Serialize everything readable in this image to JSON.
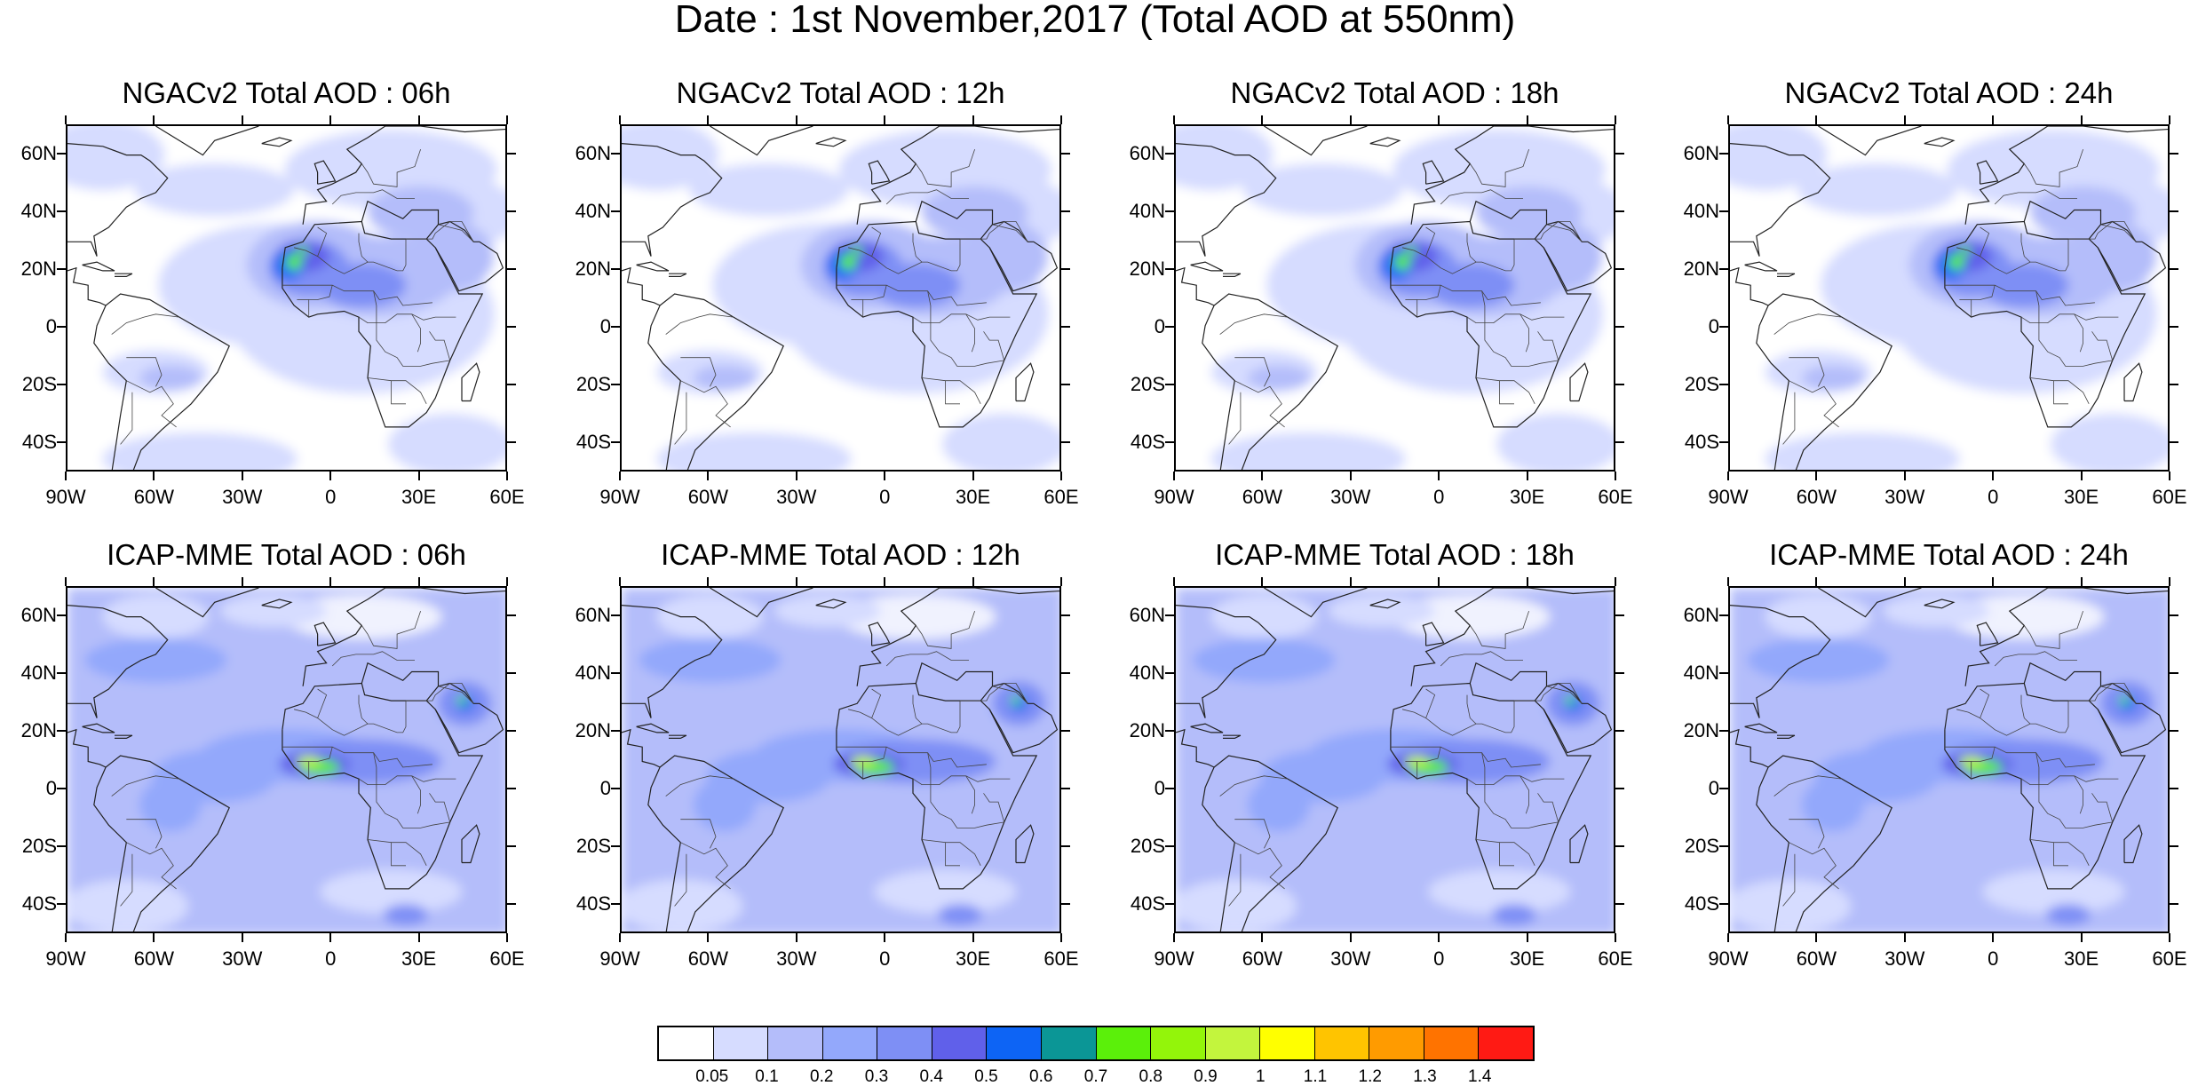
{
  "title": "Date : 1st November,2017 (Total AOD at 550nm)",
  "panels": [
    {
      "title": "NGACv2 Total AOD : 06h",
      "model": "NGACv2",
      "hour": "06h"
    },
    {
      "title": "NGACv2 Total AOD : 12h",
      "model": "NGACv2",
      "hour": "12h"
    },
    {
      "title": "NGACv2 Total AOD : 18h",
      "model": "NGACv2",
      "hour": "18h"
    },
    {
      "title": "NGACv2 Total AOD : 24h",
      "model": "NGACv2",
      "hour": "24h"
    },
    {
      "title": "ICAP-MME Total AOD : 06h",
      "model": "ICAP-MME",
      "hour": "06h"
    },
    {
      "title": "ICAP-MME Total AOD : 12h",
      "model": "ICAP-MME",
      "hour": "12h"
    },
    {
      "title": "ICAP-MME Total AOD : 18h",
      "model": "ICAP-MME",
      "hour": "18h"
    },
    {
      "title": "ICAP-MME Total AOD : 24h",
      "model": "ICAP-MME",
      "hour": "24h"
    }
  ],
  "axes": {
    "lat_labels": [
      "60N",
      "40N",
      "20N",
      "0",
      "20S",
      "40S"
    ],
    "lat_values": [
      60,
      40,
      20,
      0,
      -20,
      -40
    ],
    "lat_range": [
      -50,
      70
    ],
    "lon_labels": [
      "90W",
      "60W",
      "30W",
      "0",
      "30E",
      "60E"
    ],
    "lon_values": [
      -90,
      -60,
      -30,
      0,
      30,
      60
    ],
    "lon_range": [
      -90,
      60
    ]
  },
  "colorbar": {
    "levels": [
      "0.05",
      "0.1",
      "0.2",
      "0.3",
      "0.4",
      "0.5",
      "0.6",
      "0.7",
      "0.8",
      "0.9",
      "1",
      "1.1",
      "1.2",
      "1.3",
      "1.4"
    ],
    "colors": [
      "#ffffff",
      "#d6dcff",
      "#b4bdfa",
      "#93a8fb",
      "#7e8ff5",
      "#6060ea",
      "#0d64f5",
      "#0b9696",
      "#5bf00a",
      "#93f50a",
      "#c3f53d",
      "#ffff00",
      "#ffc400",
      "#ff9b00",
      "#ff7300",
      "#ff1a14"
    ]
  }
}
